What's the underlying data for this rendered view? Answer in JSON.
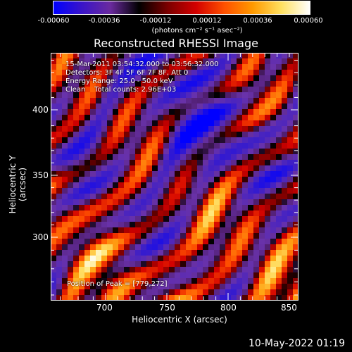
{
  "colorbar": {
    "ticks": [
      "-0.00060",
      "-0.00036",
      "-0.00012",
      "0.00012",
      "0.00036",
      "0.00060"
    ],
    "units": "(photons cm⁻² s⁻¹ asec⁻²)",
    "colors": [
      "#0000ff",
      "#3a14c8",
      "#6a2a9e",
      "#000000",
      "#7a0000",
      "#d20000",
      "#ff5000",
      "#ff9a00",
      "#ffe060",
      "#ffffff"
    ]
  },
  "chart_data": {
    "type": "heatmap",
    "title": "Reconstructed RHESSI Image",
    "xlabel": "Heliocentric X (arcsec)",
    "ylabel": "Heliocentric Y (arcsec)",
    "xlim": [
      662,
      850
    ],
    "ylim": [
      253,
      432
    ],
    "xticks": [
      "700",
      "750",
      "800",
      "850"
    ],
    "yticks": [
      "300",
      "350",
      "400"
    ],
    "colorbar_range": [
      -0.0006,
      0.0006
    ],
    "peak": [
      779,
      272
    ]
  },
  "annotations": {
    "time": "15-Mar-2011 03:54:32.000 to 03:56:32.000",
    "detectors": "Detectors: 3F 4F 5F 6F 7F 8F, Att 0",
    "energy": "Energy Range: 25.0 - 50.0 keV",
    "clean": "Clean    Total counts: 2.96E+03",
    "peak_text": "Position of Peak = [779,272]"
  },
  "footer": {
    "timestamp": "10-May-2022 01:19"
  }
}
